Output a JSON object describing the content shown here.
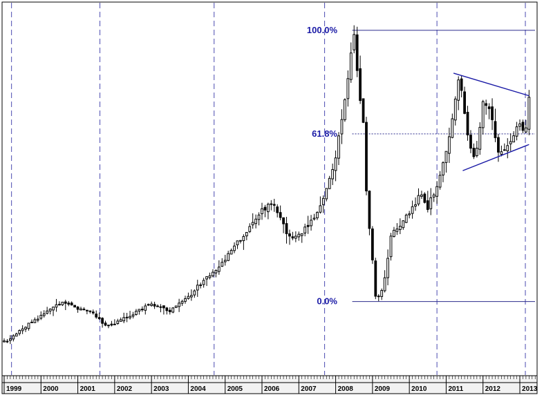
{
  "chart_data": {
    "type": "candlestick",
    "years": [
      "1999",
      "2000",
      "2001",
      "2002",
      "2003",
      "2004",
      "2005",
      "2006",
      "2007",
      "2008",
      "2009",
      "2010",
      "2011",
      "2012",
      "2013"
    ],
    "y_low": 400,
    "y_high": 1950,
    "fibonacci": {
      "low": 700,
      "high": 1840,
      "levels": [
        {
          "label": "100.0%",
          "ratio": 1.0
        },
        {
          "label": "61.8%",
          "ratio": 0.618
        },
        {
          "label": "0.0%",
          "ratio": 0.0
        }
      ]
    },
    "triangle": {
      "upper": [
        {
          "x": 2011.2,
          "y": 1660
        },
        {
          "x": 2013.25,
          "y": 1565
        }
      ],
      "lower": [
        {
          "x": 2011.45,
          "y": 1250
        },
        {
          "x": 2013.25,
          "y": 1360
        }
      ]
    },
    "vertical_markers": [
      1999.2,
      2001.6,
      2004.7,
      2007.7,
      2010.75,
      2013.15
    ],
    "colors": {
      "up_fill": "#ffffff",
      "down_fill": "#000000",
      "fib_lines": "#2a2a8c",
      "fib_text": "#1a1aa6",
      "trend_lines": "#1a1aa6",
      "marker_lines": "#4a4ab0"
    },
    "anchors": [
      [
        1999.0,
        530
      ],
      [
        1999.5,
        585
      ],
      [
        2000.0,
        640
      ],
      [
        2000.6,
        700
      ],
      [
        2001.0,
        670
      ],
      [
        2001.4,
        660
      ],
      [
        2001.7,
        600
      ],
      [
        2002.0,
        610
      ],
      [
        2002.5,
        650
      ],
      [
        2003.0,
        690
      ],
      [
        2003.5,
        660
      ],
      [
        2004.0,
        720
      ],
      [
        2004.5,
        800
      ],
      [
        2005.0,
        880
      ],
      [
        2005.6,
        1000
      ],
      [
        2006.0,
        1080
      ],
      [
        2006.3,
        1120
      ],
      [
        2006.7,
        970
      ],
      [
        2007.0,
        980
      ],
      [
        2007.4,
        1050
      ],
      [
        2007.7,
        1150
      ],
      [
        2008.0,
        1300
      ],
      [
        2008.3,
        1600
      ],
      [
        2008.5,
        1840
      ],
      [
        2008.6,
        1650
      ],
      [
        2008.75,
        1450
      ],
      [
        2008.85,
        1100
      ],
      [
        2009.0,
        880
      ],
      [
        2009.1,
        700
      ],
      [
        2009.3,
        760
      ],
      [
        2009.5,
        980
      ],
      [
        2010.0,
        1070
      ],
      [
        2010.3,
        1150
      ],
      [
        2010.5,
        1100
      ],
      [
        2010.75,
        1180
      ],
      [
        2011.0,
        1320
      ],
      [
        2011.2,
        1490
      ],
      [
        2011.35,
        1650
      ],
      [
        2011.6,
        1380
      ],
      [
        2011.8,
        1290
      ],
      [
        2012.0,
        1530
      ],
      [
        2012.2,
        1510
      ],
      [
        2012.4,
        1320
      ],
      [
        2012.7,
        1360
      ],
      [
        2012.9,
        1420
      ],
      [
        2013.0,
        1440
      ],
      [
        2013.15,
        1420
      ],
      [
        2013.25,
        1560
      ]
    ]
  }
}
